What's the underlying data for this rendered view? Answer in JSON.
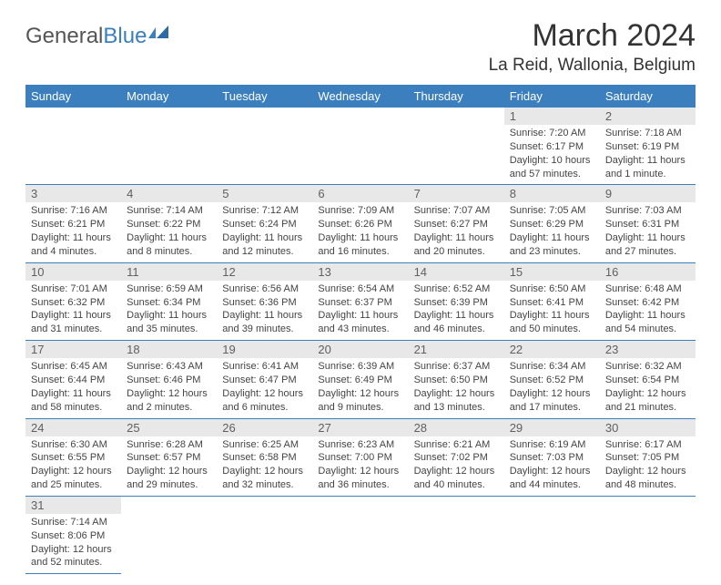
{
  "logo": {
    "text1": "General",
    "text2": "Blue",
    "accent_color": "#3b7fbf"
  },
  "title": "March 2024",
  "location": "La Reid, Wallonia, Belgium",
  "colors": {
    "header_bg": "#3b7fbf",
    "header_text": "#ffffff",
    "daynum_bg": "#e8e8e8",
    "daynum_text": "#606060",
    "body_text": "#444444",
    "rule": "#3b7fbf"
  },
  "weekdays": [
    "Sunday",
    "Monday",
    "Tuesday",
    "Wednesday",
    "Thursday",
    "Friday",
    "Saturday"
  ],
  "weeks": [
    [
      null,
      null,
      null,
      null,
      null,
      {
        "n": "1",
        "sr": "Sunrise: 7:20 AM",
        "ss": "Sunset: 6:17 PM",
        "dl1": "Daylight: 10 hours",
        "dl2": "and 57 minutes."
      },
      {
        "n": "2",
        "sr": "Sunrise: 7:18 AM",
        "ss": "Sunset: 6:19 PM",
        "dl1": "Daylight: 11 hours",
        "dl2": "and 1 minute."
      }
    ],
    [
      {
        "n": "3",
        "sr": "Sunrise: 7:16 AM",
        "ss": "Sunset: 6:21 PM",
        "dl1": "Daylight: 11 hours",
        "dl2": "and 4 minutes."
      },
      {
        "n": "4",
        "sr": "Sunrise: 7:14 AM",
        "ss": "Sunset: 6:22 PM",
        "dl1": "Daylight: 11 hours",
        "dl2": "and 8 minutes."
      },
      {
        "n": "5",
        "sr": "Sunrise: 7:12 AM",
        "ss": "Sunset: 6:24 PM",
        "dl1": "Daylight: 11 hours",
        "dl2": "and 12 minutes."
      },
      {
        "n": "6",
        "sr": "Sunrise: 7:09 AM",
        "ss": "Sunset: 6:26 PM",
        "dl1": "Daylight: 11 hours",
        "dl2": "and 16 minutes."
      },
      {
        "n": "7",
        "sr": "Sunrise: 7:07 AM",
        "ss": "Sunset: 6:27 PM",
        "dl1": "Daylight: 11 hours",
        "dl2": "and 20 minutes."
      },
      {
        "n": "8",
        "sr": "Sunrise: 7:05 AM",
        "ss": "Sunset: 6:29 PM",
        "dl1": "Daylight: 11 hours",
        "dl2": "and 23 minutes."
      },
      {
        "n": "9",
        "sr": "Sunrise: 7:03 AM",
        "ss": "Sunset: 6:31 PM",
        "dl1": "Daylight: 11 hours",
        "dl2": "and 27 minutes."
      }
    ],
    [
      {
        "n": "10",
        "sr": "Sunrise: 7:01 AM",
        "ss": "Sunset: 6:32 PM",
        "dl1": "Daylight: 11 hours",
        "dl2": "and 31 minutes."
      },
      {
        "n": "11",
        "sr": "Sunrise: 6:59 AM",
        "ss": "Sunset: 6:34 PM",
        "dl1": "Daylight: 11 hours",
        "dl2": "and 35 minutes."
      },
      {
        "n": "12",
        "sr": "Sunrise: 6:56 AM",
        "ss": "Sunset: 6:36 PM",
        "dl1": "Daylight: 11 hours",
        "dl2": "and 39 minutes."
      },
      {
        "n": "13",
        "sr": "Sunrise: 6:54 AM",
        "ss": "Sunset: 6:37 PM",
        "dl1": "Daylight: 11 hours",
        "dl2": "and 43 minutes."
      },
      {
        "n": "14",
        "sr": "Sunrise: 6:52 AM",
        "ss": "Sunset: 6:39 PM",
        "dl1": "Daylight: 11 hours",
        "dl2": "and 46 minutes."
      },
      {
        "n": "15",
        "sr": "Sunrise: 6:50 AM",
        "ss": "Sunset: 6:41 PM",
        "dl1": "Daylight: 11 hours",
        "dl2": "and 50 minutes."
      },
      {
        "n": "16",
        "sr": "Sunrise: 6:48 AM",
        "ss": "Sunset: 6:42 PM",
        "dl1": "Daylight: 11 hours",
        "dl2": "and 54 minutes."
      }
    ],
    [
      {
        "n": "17",
        "sr": "Sunrise: 6:45 AM",
        "ss": "Sunset: 6:44 PM",
        "dl1": "Daylight: 11 hours",
        "dl2": "and 58 minutes."
      },
      {
        "n": "18",
        "sr": "Sunrise: 6:43 AM",
        "ss": "Sunset: 6:46 PM",
        "dl1": "Daylight: 12 hours",
        "dl2": "and 2 minutes."
      },
      {
        "n": "19",
        "sr": "Sunrise: 6:41 AM",
        "ss": "Sunset: 6:47 PM",
        "dl1": "Daylight: 12 hours",
        "dl2": "and 6 minutes."
      },
      {
        "n": "20",
        "sr": "Sunrise: 6:39 AM",
        "ss": "Sunset: 6:49 PM",
        "dl1": "Daylight: 12 hours",
        "dl2": "and 9 minutes."
      },
      {
        "n": "21",
        "sr": "Sunrise: 6:37 AM",
        "ss": "Sunset: 6:50 PM",
        "dl1": "Daylight: 12 hours",
        "dl2": "and 13 minutes."
      },
      {
        "n": "22",
        "sr": "Sunrise: 6:34 AM",
        "ss": "Sunset: 6:52 PM",
        "dl1": "Daylight: 12 hours",
        "dl2": "and 17 minutes."
      },
      {
        "n": "23",
        "sr": "Sunrise: 6:32 AM",
        "ss": "Sunset: 6:54 PM",
        "dl1": "Daylight: 12 hours",
        "dl2": "and 21 minutes."
      }
    ],
    [
      {
        "n": "24",
        "sr": "Sunrise: 6:30 AM",
        "ss": "Sunset: 6:55 PM",
        "dl1": "Daylight: 12 hours",
        "dl2": "and 25 minutes."
      },
      {
        "n": "25",
        "sr": "Sunrise: 6:28 AM",
        "ss": "Sunset: 6:57 PM",
        "dl1": "Daylight: 12 hours",
        "dl2": "and 29 minutes."
      },
      {
        "n": "26",
        "sr": "Sunrise: 6:25 AM",
        "ss": "Sunset: 6:58 PM",
        "dl1": "Daylight: 12 hours",
        "dl2": "and 32 minutes."
      },
      {
        "n": "27",
        "sr": "Sunrise: 6:23 AM",
        "ss": "Sunset: 7:00 PM",
        "dl1": "Daylight: 12 hours",
        "dl2": "and 36 minutes."
      },
      {
        "n": "28",
        "sr": "Sunrise: 6:21 AM",
        "ss": "Sunset: 7:02 PM",
        "dl1": "Daylight: 12 hours",
        "dl2": "and 40 minutes."
      },
      {
        "n": "29",
        "sr": "Sunrise: 6:19 AM",
        "ss": "Sunset: 7:03 PM",
        "dl1": "Daylight: 12 hours",
        "dl2": "and 44 minutes."
      },
      {
        "n": "30",
        "sr": "Sunrise: 6:17 AM",
        "ss": "Sunset: 7:05 PM",
        "dl1": "Daylight: 12 hours",
        "dl2": "and 48 minutes."
      }
    ],
    [
      {
        "n": "31",
        "sr": "Sunrise: 7:14 AM",
        "ss": "Sunset: 8:06 PM",
        "dl1": "Daylight: 12 hours",
        "dl2": "and 52 minutes."
      },
      null,
      null,
      null,
      null,
      null,
      null
    ]
  ]
}
